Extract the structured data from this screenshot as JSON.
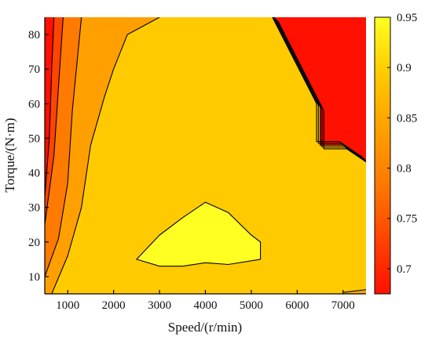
{
  "chart_data": {
    "type": "contour",
    "xlabel": "Speed/(r/min)",
    "ylabel": "Torque/(N·m)",
    "xlim": [
      500,
      7500
    ],
    "ylim": [
      5,
      85
    ],
    "xticks": [
      1000,
      2000,
      3000,
      4000,
      5000,
      6000,
      7000
    ],
    "yticks": [
      10,
      20,
      30,
      40,
      50,
      60,
      70,
      80
    ],
    "colorbar": {
      "min": 0.675,
      "max": 0.95,
      "ticks": [
        "0.7",
        "0.75",
        "0.8",
        "0.85",
        "0.9",
        "0.95"
      ],
      "tick_values": [
        0.7,
        0.75,
        0.8,
        0.85,
        0.9,
        0.95
      ],
      "colors": [
        "#ff1000",
        "#ff4400",
        "#ff7a00",
        "#ffa000",
        "#ffcb00",
        "#ffff22"
      ]
    },
    "levels": [
      {
        "level": 0.725,
        "color": "#ff4400",
        "points": [
          [
            500,
            33
          ],
          [
            600,
            50
          ],
          [
            650,
            70
          ],
          [
            700,
            85
          ]
        ]
      },
      {
        "level": 0.775,
        "color": "#ff7a00",
        "points": [
          [
            500,
            25
          ],
          [
            700,
            45
          ],
          [
            800,
            65
          ],
          [
            900,
            85
          ]
        ]
      },
      {
        "level": 0.825,
        "color": "#ffa000",
        "points": [
          [
            500,
            10
          ],
          [
            800,
            21
          ],
          [
            1000,
            37
          ],
          [
            1100,
            58
          ],
          [
            1300,
            85
          ]
        ]
      },
      {
        "level": 0.875,
        "color": "#ffcb00",
        "points": [
          [
            650,
            5
          ],
          [
            1000,
            16
          ],
          [
            1300,
            30
          ],
          [
            1500,
            48
          ],
          [
            1800,
            62
          ],
          [
            2000,
            70
          ],
          [
            2300,
            80
          ],
          [
            3000,
            85
          ]
        ]
      },
      {
        "level": 0.925,
        "color": "#ffff22",
        "closed": true,
        "points": [
          [
            2500,
            15
          ],
          [
            3000,
            22
          ],
          [
            3500,
            27
          ],
          [
            4000,
            31.5
          ],
          [
            4500,
            28.5
          ],
          [
            5000,
            22
          ],
          [
            5200,
            20
          ],
          [
            5200,
            15
          ],
          [
            4500,
            13.5
          ],
          [
            4000,
            14
          ],
          [
            3500,
            13
          ],
          [
            3000,
            13
          ]
        ]
      }
    ],
    "low_region": {
      "color": "#ff1000",
      "points": [
        [
          5500,
          85
        ],
        [
          6000,
          72
        ],
        [
          6500,
          59
        ],
        [
          6500,
          48
        ],
        [
          7000,
          48
        ],
        [
          7500,
          43.5
        ],
        [
          7500,
          85
        ]
      ],
      "boundary_lines": 5,
      "corner_band": [
        [
          7000,
          5
        ],
        [
          7500,
          6
        ],
        [
          7500,
          5
        ]
      ]
    }
  }
}
